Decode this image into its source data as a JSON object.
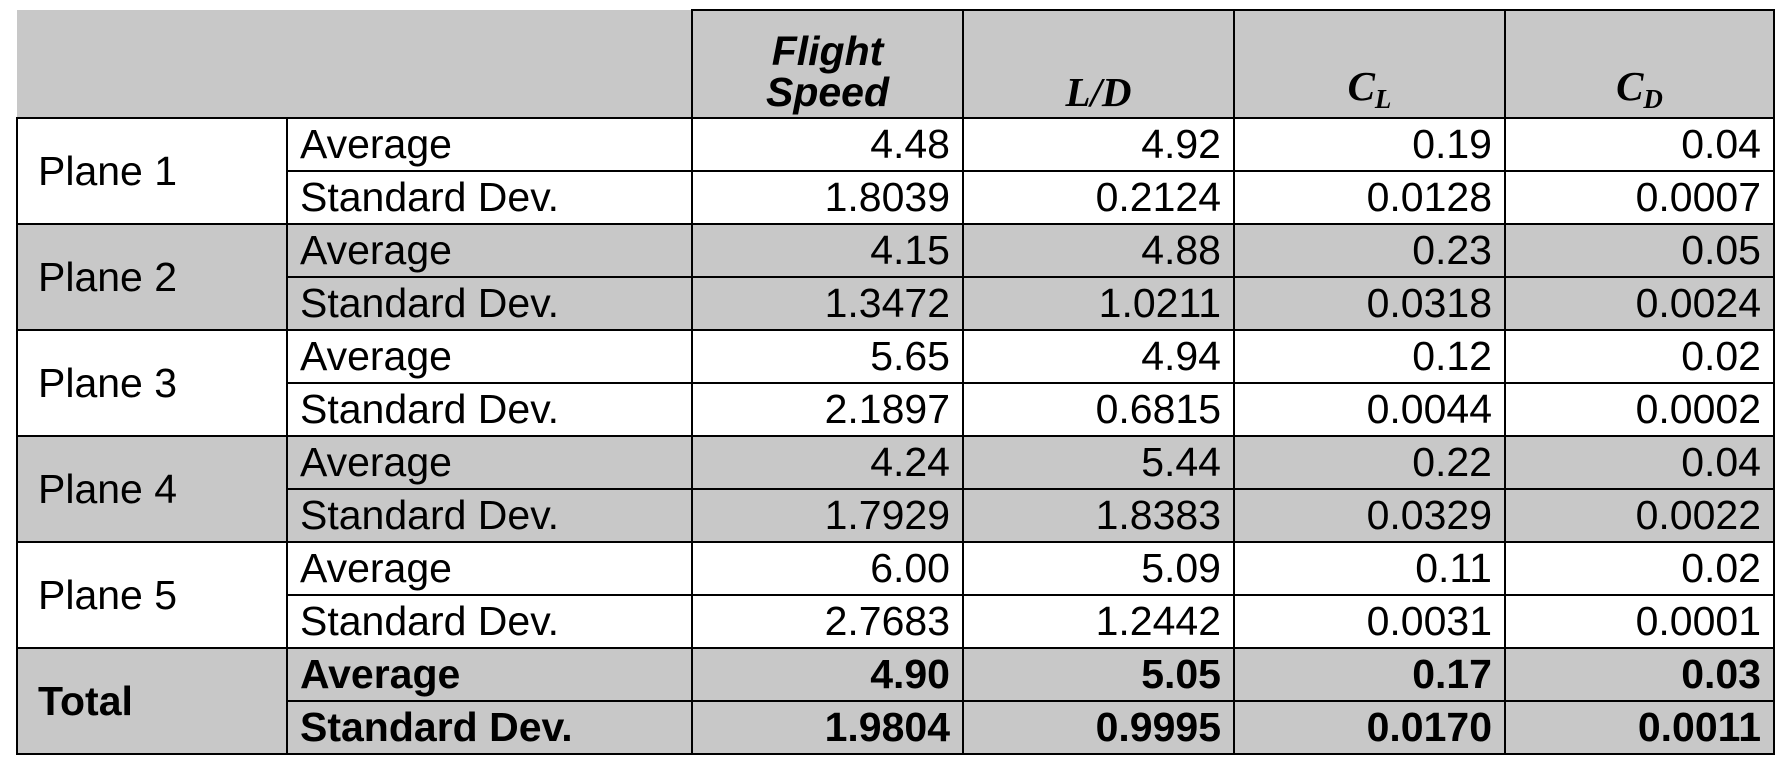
{
  "table": {
    "header": [
      {
        "lines": [
          "Flight",
          "Speed"
        ]
      },
      {
        "main": "L/D"
      },
      {
        "main": "C",
        "sub": "L"
      },
      {
        "main": "C",
        "sub": "D"
      }
    ],
    "groups": [
      {
        "label": "Plane 1",
        "rows": [
          {
            "stat": "Average",
            "values": [
              "4.48",
              "4.92",
              "0.19",
              "0.04"
            ]
          },
          {
            "stat": "Standard Dev.",
            "values": [
              "1.8039",
              "0.2124",
              "0.0128",
              "0.0007"
            ]
          }
        ]
      },
      {
        "label": "Plane 2",
        "rows": [
          {
            "stat": "Average",
            "values": [
              "4.15",
              "4.88",
              "0.23",
              "0.05"
            ]
          },
          {
            "stat": "Standard Dev.",
            "values": [
              "1.3472",
              "1.0211",
              "0.0318",
              "0.0024"
            ]
          }
        ]
      },
      {
        "label": "Plane 3",
        "rows": [
          {
            "stat": "Average",
            "values": [
              "5.65",
              "4.94",
              "0.12",
              "0.02"
            ]
          },
          {
            "stat": "Standard Dev.",
            "values": [
              "2.1897",
              "0.6815",
              "0.0044",
              "0.0002"
            ]
          }
        ]
      },
      {
        "label": "Plane 4",
        "rows": [
          {
            "stat": "Average",
            "values": [
              "4.24",
              "5.44",
              "0.22",
              "0.04"
            ]
          },
          {
            "stat": "Standard Dev.",
            "values": [
              "1.7929",
              "1.8383",
              "0.0329",
              "0.0022"
            ]
          }
        ]
      },
      {
        "label": "Plane 5",
        "rows": [
          {
            "stat": "Average",
            "values": [
              "6.00",
              "5.09",
              "0.11",
              "0.02"
            ]
          },
          {
            "stat": "Standard Dev.",
            "values": [
              "2.7683",
              "1.2442",
              "0.0031",
              "0.0001"
            ]
          }
        ]
      },
      {
        "label": "Total",
        "rows": [
          {
            "stat": "Average",
            "values": [
              "4.90",
              "5.05",
              "0.17",
              "0.03"
            ]
          },
          {
            "stat": "Standard Dev.",
            "values": [
              "1.9804",
              "0.9995",
              "0.0170",
              "0.0011"
            ]
          }
        ]
      }
    ]
  }
}
